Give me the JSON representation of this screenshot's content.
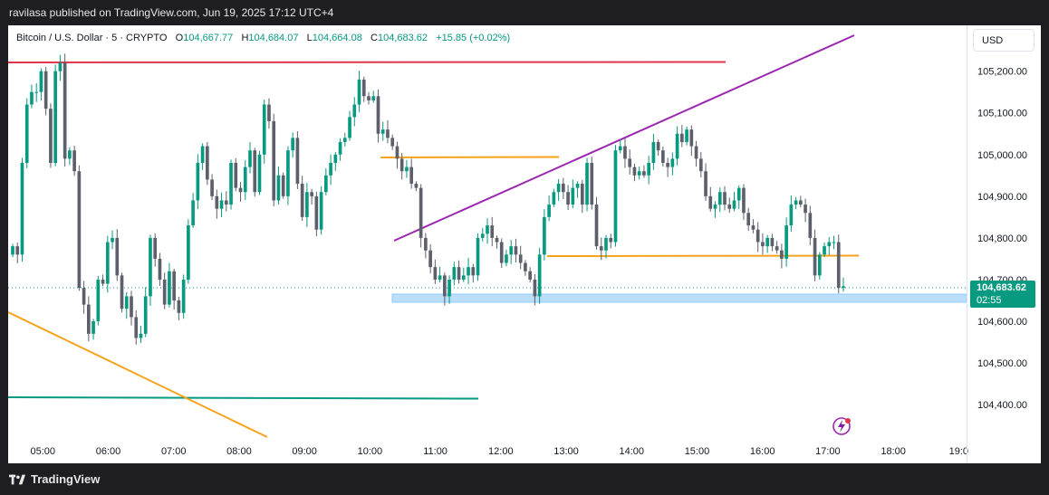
{
  "publisher_line": "ravilasa published on TradingView.com, Jun 19, 2025 17:12 UTC+4",
  "brand": "TradingView",
  "currency_button": "USD",
  "legend": {
    "symbol": "Bitcoin / U.S. Dollar · 5 · CRYPTO",
    "open_label": "O",
    "open": "104,667.77",
    "high_label": "H",
    "high": "104,684.07",
    "low_label": "L",
    "low": "104,664.08",
    "close_label": "C",
    "close": "104,683.62",
    "change": "+15.85 (+0.02%)"
  },
  "price_tag": {
    "price": "104,683.62",
    "countdown": "02:55"
  },
  "colors": {
    "up": "#089981",
    "down": "#5d606b",
    "red_line": "#e0344a",
    "purple": "#9c27b0",
    "orange": "#f7a21b",
    "teal_line": "#089981",
    "zone": "#bbdefb"
  },
  "chart_data": {
    "type": "candlestick",
    "y_ticks": [
      "105,200.00",
      "105,100.00",
      "105,000.00",
      "104,900.00",
      "104,800.00",
      "104,700.00",
      "104,600.00",
      "104,500.00",
      "104,400.00"
    ],
    "y_tick_values": [
      105200,
      105100,
      105000,
      104900,
      104800,
      104700,
      104600,
      104500,
      104400
    ],
    "ylim": [
      104320,
      105310
    ],
    "x_ticks": [
      "05:00",
      "06:00",
      "07:00",
      "08:00",
      "09:00",
      "10:00",
      "11:00",
      "12:00",
      "13:00",
      "14:00",
      "15:00",
      "16:00",
      "17:00",
      "18:00",
      "19:0"
    ],
    "x_tick_hours": [
      5,
      6,
      7,
      8,
      9,
      10,
      11,
      12,
      13,
      14,
      15,
      16,
      17,
      18,
      19
    ],
    "xlim": [
      4.47,
      19.12
    ],
    "last_price": 104683.62,
    "closes": [
      104780,
      104760,
      104980,
      105120,
      105150,
      105150,
      105200,
      105110,
      104980,
      105200,
      105220,
      104990,
      105010,
      104960,
      104680,
      104640,
      104570,
      104600,
      104700,
      104690,
      104790,
      104800,
      104710,
      104630,
      104660,
      104610,
      104560,
      104570,
      104660,
      104800,
      104750,
      104700,
      104640,
      104720,
      104650,
      104620,
      104700,
      104830,
      104890,
      104980,
      105020,
      104940,
      104900,
      104870,
      104890,
      104880,
      104980,
      104920,
      104910,
      104970,
      105010,
      104910,
      105000,
      105120,
      105080,
      104890,
      104950,
      104900,
      105010,
      105040,
      104930,
      104850,
      104910,
      104900,
      104820,
      104910,
      104950,
      104980,
      105000,
      105030,
      105040,
      105090,
      105120,
      105180,
      105140,
      105130,
      105140,
      105050,
      105060,
      105040,
      105020,
      104990,
      104960,
      104970,
      104930,
      104920,
      104800,
      104770,
      104730,
      104700,
      104710,
      104660,
      104700,
      104730,
      104700,
      104710,
      104730,
      104710,
      104800,
      104810,
      104830,
      104800,
      104790,
      104740,
      104760,
      104780,
      104760,
      104740,
      104720,
      104700,
      104660,
      104760,
      104850,
      104880,
      104910,
      104930,
      104910,
      104880,
      104920,
      104930,
      104880,
      104980,
      104880,
      104780,
      104770,
      104800,
      104790,
      105010,
      105020,
      104990,
      104970,
      104950,
      104960,
      104950,
      104980,
      105030,
      105010,
      104980,
      104970,
      104990,
      105050,
      105030,
      105060,
      105020,
      104990,
      104960,
      104900,
      104870,
      104880,
      104910,
      104880,
      104870,
      104890,
      104920,
      104860,
      104830,
      104820,
      104790,
      104780,
      104800,
      104780,
      104770,
      104750,
      104830,
      104880,
      104890,
      104880,
      104860,
      104800,
      104710,
      104760,
      104780,
      104790,
      104790,
      104680,
      104684
    ]
  }
}
